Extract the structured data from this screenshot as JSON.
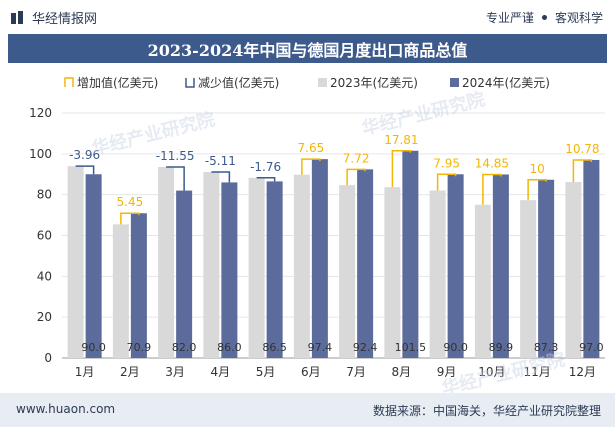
{
  "header": {
    "brand": "华经情报网",
    "tag1": "专业严谨",
    "tag2": "客观科学"
  },
  "watermark": "华经产业研究院",
  "footer": {
    "url": "www.huaon.com",
    "source": "数据来源：中国海关，华经产业研究院整理"
  },
  "colors": {
    "title_bg": "#3d5a8c",
    "bar_2023": "#d9d9d9",
    "bar_2024": "#5b6b9b",
    "increase": "#f2b705",
    "decrease": "#3d5a8c",
    "label_increase": "#f2b705",
    "label_decrease": "#3d5a8c"
  },
  "chart_data": {
    "type": "bar",
    "title": "2023-2024年中国与德国月度出口商品总值",
    "categories": [
      "1月",
      "2月",
      "3月",
      "4月",
      "5月",
      "6月",
      "7月",
      "8月",
      "9月",
      "10月",
      "11月",
      "12月"
    ],
    "series": [
      {
        "name": "2023年(亿美元)",
        "values": [
          93.96,
          65.45,
          93.55,
          91.11,
          88.26,
          89.75,
          84.68,
          83.69,
          82.05,
          75.05,
          77.3,
          86.22
        ]
      },
      {
        "name": "2024年(亿美元)",
        "values": [
          90.0,
          70.9,
          82.0,
          86.0,
          86.5,
          97.4,
          92.4,
          101.5,
          90.0,
          89.9,
          87.3,
          97.0
        ]
      }
    ],
    "bar_labels_2024": [
      "90.0",
      "70.9",
      "82.0",
      "86.0",
      "86.5",
      "97.4",
      "92.4",
      "101.5",
      "90.0",
      "89.9",
      "87.3",
      "97.0"
    ],
    "changes": [
      -3.96,
      5.45,
      -11.55,
      -5.11,
      -1.76,
      7.65,
      7.72,
      17.81,
      7.95,
      14.85,
      10,
      10.78
    ],
    "change_labels": [
      "-3.96",
      "5.45",
      "-11.55",
      "-5.11",
      "-1.76",
      "7.65",
      "7.72",
      "17.81",
      "7.95",
      "14.85",
      "10",
      "10.78"
    ],
    "legend": [
      "增加值(亿美元)",
      "减少值(亿美元)",
      "2023年(亿美元)",
      "2024年(亿美元)"
    ],
    "ylim": [
      0,
      120
    ],
    "yticks": [
      0,
      20,
      40,
      60,
      80,
      100,
      120
    ],
    "grid": true,
    "legend_position": "top"
  }
}
